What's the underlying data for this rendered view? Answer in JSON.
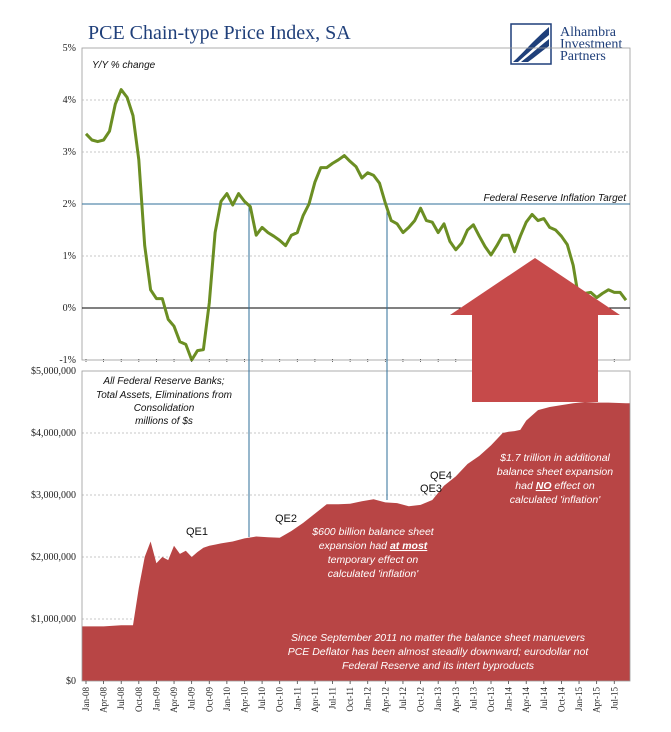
{
  "header": {
    "title": "PCE Chain-type Price Index, SA",
    "brand_line1": "Alhambra",
    "brand_line2": "Investment",
    "brand_line3": "Partners"
  },
  "colors": {
    "title": "#1f3f7a",
    "pce_line": "#6b8e23",
    "balance_fill": "#b84545",
    "arrow": "#c64a4a",
    "target_line": "#2f6f9a",
    "dark_blue": "#1f3f7a"
  },
  "chart_data": [
    {
      "type": "line",
      "ylabel": "Y/Y % change",
      "ylim": [
        -1,
        5
      ],
      "yticks": [
        "5%",
        "4%",
        "3%",
        "2%",
        "1%",
        "0%",
        "-1%"
      ],
      "yticks_values": [
        5,
        4,
        3,
        2,
        1,
        0,
        -1
      ],
      "grid": true,
      "reference_line": {
        "value": 2,
        "label": "Federal Reserve Inflation Target"
      },
      "series": [
        {
          "x": [
            "2008-01",
            "2008-02",
            "2008-03",
            "2008-04",
            "2008-05",
            "2008-06",
            "2008-07",
            "2008-08",
            "2008-09",
            "2008-10",
            "2008-11",
            "2008-12",
            "2009-01",
            "2009-02",
            "2009-03",
            "2009-04",
            "2009-05",
            "2009-06",
            "2009-07",
            "2009-08",
            "2009-09",
            "2009-10",
            "2009-11",
            "2009-12",
            "2010-01",
            "2010-02",
            "2010-03",
            "2010-04",
            "2010-05",
            "2010-06",
            "2010-07",
            "2010-08",
            "2010-09",
            "2010-10",
            "2010-11",
            "2010-12",
            "2011-01",
            "2011-02",
            "2011-03",
            "2011-04",
            "2011-05",
            "2011-06",
            "2011-07",
            "2011-08",
            "2011-09",
            "2011-10",
            "2011-11",
            "2011-12",
            "2012-01",
            "2012-02",
            "2012-03",
            "2012-04",
            "2012-05",
            "2012-06",
            "2012-07",
            "2012-08",
            "2012-09",
            "2012-10",
            "2012-11",
            "2012-12",
            "2013-01",
            "2013-02",
            "2013-03",
            "2013-04",
            "2013-05",
            "2013-06",
            "2013-07",
            "2013-08",
            "2013-09",
            "2013-10",
            "2013-11",
            "2013-12",
            "2014-01",
            "2014-02",
            "2014-03",
            "2014-04",
            "2014-05",
            "2014-06",
            "2014-07",
            "2014-08",
            "2014-09",
            "2014-10",
            "2014-11",
            "2014-12",
            "2015-01",
            "2015-02",
            "2015-03",
            "2015-04",
            "2015-05",
            "2015-06",
            "2015-07",
            "2015-08",
            "2015-09"
          ],
          "values": [
            3.35,
            3.23,
            3.2,
            3.23,
            3.4,
            3.92,
            4.2,
            4.05,
            3.7,
            2.85,
            1.2,
            0.35,
            0.18,
            0.18,
            -0.22,
            -0.35,
            -0.65,
            -0.7,
            -1.15,
            -0.82,
            -0.8,
            0.1,
            1.45,
            2.05,
            2.2,
            1.98,
            2.2,
            2.05,
            1.95,
            1.4,
            1.55,
            1.45,
            1.38,
            1.3,
            1.2,
            1.4,
            1.45,
            1.78,
            2.0,
            2.42,
            2.7,
            2.7,
            2.78,
            2.85,
            2.93,
            2.82,
            2.72,
            2.5,
            2.6,
            2.55,
            2.4,
            2.02,
            1.68,
            1.62,
            1.45,
            1.55,
            1.68,
            1.92,
            1.68,
            1.65,
            1.45,
            1.62,
            1.28,
            1.12,
            1.25,
            1.5,
            1.6,
            1.38,
            1.18,
            1.02,
            1.2,
            1.4,
            1.4,
            1.08,
            1.38,
            1.65,
            1.8,
            1.68,
            1.72,
            1.55,
            1.5,
            1.38,
            1.22,
            0.82,
            0.15,
            0.28,
            0.3,
            0.2,
            0.28,
            0.35,
            0.3,
            0.3,
            0.15
          ]
        }
      ]
    },
    {
      "type": "area",
      "ylim": [
        0,
        5000000
      ],
      "yticks": [
        "$5,000,000",
        "$4,000,000",
        "$3,000,000",
        "$2,000,000",
        "$1,000,000",
        "$0"
      ],
      "yticks_values": [
        5000000,
        4000000,
        3000000,
        2000000,
        1000000,
        0
      ],
      "grid": true,
      "series": [
        {
          "x": [
            "2008-01",
            "2008-04",
            "2008-07",
            "2008-09",
            "2008-10",
            "2008-11",
            "2008-12",
            "2009-01",
            "2009-02",
            "2009-03",
            "2009-04",
            "2009-05",
            "2009-06",
            "2009-07",
            "2009-08",
            "2009-09",
            "2009-10",
            "2009-11",
            "2009-12",
            "2010-02",
            "2010-04",
            "2010-06",
            "2010-08",
            "2010-10",
            "2010-12",
            "2011-02",
            "2011-04",
            "2011-06",
            "2011-08",
            "2011-10",
            "2011-12",
            "2012-02",
            "2012-04",
            "2012-06",
            "2012-08",
            "2012-10",
            "2012-12",
            "2013-02",
            "2013-04",
            "2013-06",
            "2013-08",
            "2013-10",
            "2013-12",
            "2014-01",
            "2014-02",
            "2014-03",
            "2014-04",
            "2014-06",
            "2014-08",
            "2014-10",
            "2014-12",
            "2015-02",
            "2015-04",
            "2015-06",
            "2015-09"
          ],
          "values": [
            880000,
            880000,
            900000,
            900000,
            1500000,
            2000000,
            2250000,
            1900000,
            2000000,
            1950000,
            2180000,
            2050000,
            2100000,
            2000000,
            2080000,
            2150000,
            2180000,
            2200000,
            2220000,
            2250000,
            2300000,
            2330000,
            2320000,
            2310000,
            2420000,
            2550000,
            2700000,
            2850000,
            2850000,
            2860000,
            2900000,
            2930000,
            2880000,
            2870000,
            2820000,
            2840000,
            2920000,
            3150000,
            3300000,
            3500000,
            3630000,
            3800000,
            4000000,
            4020000,
            4030000,
            4050000,
            4200000,
            4370000,
            4420000,
            4450000,
            4480000,
            4500000,
            4490000,
            4490000,
            4480000
          ]
        }
      ],
      "annotations": [
        "All Federal Reserve Banks; Total Assets, Eliminations from Consolidation millions of $s",
        "QE1",
        "QE2",
        "QE3",
        "QE4",
        "$600 billion balance sheet expansion had at most temporary effect on calculated 'inflation'",
        "$1.7 trillion in additional balance sheet expansion had NO effect on calculated 'inflation'",
        "Since September 2011 no matter the balance sheet manuevers PCE Deflator has been almost steadily downward; eurodollar not Federal Reserve and its intert byproducts"
      ]
    }
  ],
  "x_axis": {
    "labels": [
      "Jan-08",
      "Apr-08",
      "Jul-08",
      "Oct-08",
      "Jan-09",
      "Apr-09",
      "Jul-09",
      "Oct-09",
      "Jan-10",
      "Apr-10",
      "Jul-10",
      "Oct-10",
      "Jan-11",
      "Apr-11",
      "Jul-11",
      "Oct-11",
      "Jan-12",
      "Apr-12",
      "Jul-12",
      "Oct-12",
      "Jan-13",
      "Apr-13",
      "Jul-13",
      "Oct-13",
      "Jan-14",
      "Apr-14",
      "Jul-14",
      "Oct-14",
      "Jan-15",
      "Apr-15",
      "Jul-15"
    ]
  },
  "texts": {
    "ylabel_top": "Y/Y % change",
    "target_label": "Federal Reserve Inflation Target",
    "assets_note": [
      "All Federal Reserve Banks;",
      "Total Assets, Eliminations from",
      "Consolidation",
      "millions of $s"
    ],
    "qe1": "QE1",
    "qe2": "QE2",
    "qe3": "QE3",
    "qe4": "QE4",
    "note_600": {
      "l1": "$600 billion balance sheet",
      "l2_pre": "expansion had ",
      "l2_em": "at most",
      "l3": "temporary effect on",
      "l4": "calculated 'inflation'"
    },
    "note_17": {
      "l1": "$1.7 trillion in additional",
      "l2": "balance sheet expansion",
      "l3_pre": "had ",
      "l3_em": "NO",
      "l3_post": " effect on",
      "l4": "calculated 'inflation'"
    },
    "note_bottom": [
      "Since September 2011 no matter the balance sheet manuevers",
      "PCE Deflator has been almost steadily downward; eurodollar not",
      "Federal Reserve and its intert byproducts"
    ]
  }
}
